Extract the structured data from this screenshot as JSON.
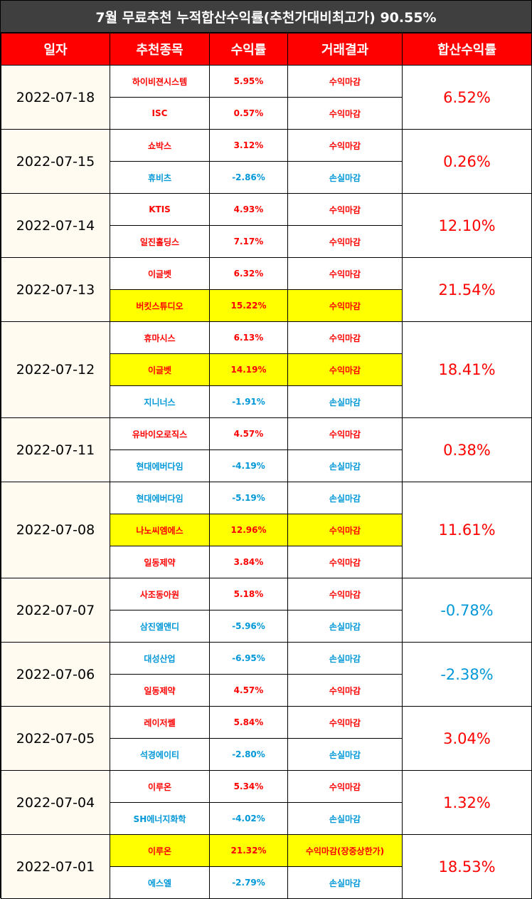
{
  "title": "7월 무료추천 누적합산수익률(추천가대비최고가) 90.55%",
  "headers": [
    "일자",
    "추천종목",
    "수익률",
    "거래결과",
    "합산수익률"
  ],
  "colors": {
    "profit": "#ff0000",
    "loss": "#0098d8",
    "highlight": "#ffff00",
    "header_bg": "#ff0000",
    "title_bg": "#3f3f3f"
  },
  "groups": [
    {
      "date": "2022-07-18",
      "total": "6.52%",
      "total_positive": true,
      "rows": [
        {
          "name": "하이비젼시스템",
          "rate": "5.95%",
          "result": "수익마감",
          "positive": true,
          "highlight": false
        },
        {
          "name": "ISC",
          "rate": "0.57%",
          "result": "수익마감",
          "positive": true,
          "highlight": false
        }
      ]
    },
    {
      "date": "2022-07-15",
      "total": "0.26%",
      "total_positive": true,
      "rows": [
        {
          "name": "쇼박스",
          "rate": "3.12%",
          "result": "수익마감",
          "positive": true,
          "highlight": false
        },
        {
          "name": "휴비츠",
          "rate": "-2.86%",
          "result": "손실마감",
          "positive": false,
          "highlight": false
        }
      ]
    },
    {
      "date": "2022-07-14",
      "total": "12.10%",
      "total_positive": true,
      "rows": [
        {
          "name": "KTIS",
          "rate": "4.93%",
          "result": "수익마감",
          "positive": true,
          "highlight": false
        },
        {
          "name": "일진홀딩스",
          "rate": "7.17%",
          "result": "수익마감",
          "positive": true,
          "highlight": false
        }
      ]
    },
    {
      "date": "2022-07-13",
      "total": "21.54%",
      "total_positive": true,
      "rows": [
        {
          "name": "이글벳",
          "rate": "6.32%",
          "result": "수익마감",
          "positive": true,
          "highlight": false
        },
        {
          "name": "버킷스튜디오",
          "rate": "15.22%",
          "result": "수익마감",
          "positive": true,
          "highlight": true
        }
      ]
    },
    {
      "date": "2022-07-12",
      "total": "18.41%",
      "total_positive": true,
      "rows": [
        {
          "name": "휴마시스",
          "rate": "6.13%",
          "result": "수익마감",
          "positive": true,
          "highlight": false
        },
        {
          "name": "이글벳",
          "rate": "14.19%",
          "result": "수익마감",
          "positive": true,
          "highlight": true
        },
        {
          "name": "지니너스",
          "rate": "-1.91%",
          "result": "손실마감",
          "positive": false,
          "highlight": false
        }
      ]
    },
    {
      "date": "2022-07-11",
      "total": "0.38%",
      "total_positive": true,
      "rows": [
        {
          "name": "유바이오로직스",
          "rate": "4.57%",
          "result": "수익마감",
          "positive": true,
          "highlight": false
        },
        {
          "name": "현대에버다임",
          "rate": "-4.19%",
          "result": "손실마감",
          "positive": false,
          "highlight": false
        }
      ]
    },
    {
      "date": "2022-07-08",
      "total": "11.61%",
      "total_positive": true,
      "rows": [
        {
          "name": "현대에버다임",
          "rate": "-5.19%",
          "result": "손실마감",
          "positive": false,
          "highlight": false
        },
        {
          "name": "나노씨엠에스",
          "rate": "12.96%",
          "result": "수익마감",
          "positive": true,
          "highlight": true
        },
        {
          "name": "일동제약",
          "rate": "3.84%",
          "result": "수익마감",
          "positive": true,
          "highlight": false
        }
      ]
    },
    {
      "date": "2022-07-07",
      "total": "-0.78%",
      "total_positive": false,
      "rows": [
        {
          "name": "사조동아원",
          "rate": "5.18%",
          "result": "수익마감",
          "positive": true,
          "highlight": false
        },
        {
          "name": "삼진엘앤디",
          "rate": "-5.96%",
          "result": "손실마감",
          "positive": false,
          "highlight": false
        }
      ]
    },
    {
      "date": "2022-07-06",
      "total": "-2.38%",
      "total_positive": false,
      "rows": [
        {
          "name": "대성산업",
          "rate": "-6.95%",
          "result": "손실마감",
          "positive": false,
          "highlight": false
        },
        {
          "name": "일동제약",
          "rate": "4.57%",
          "result": "수익마감",
          "positive": true,
          "highlight": false
        }
      ]
    },
    {
      "date": "2022-07-05",
      "total": "3.04%",
      "total_positive": true,
      "rows": [
        {
          "name": "레이저쎌",
          "rate": "5.84%",
          "result": "수익마감",
          "positive": true,
          "highlight": false
        },
        {
          "name": "석경에이티",
          "rate": "-2.80%",
          "result": "손실마감",
          "positive": false,
          "highlight": false
        }
      ]
    },
    {
      "date": "2022-07-04",
      "total": "1.32%",
      "total_positive": true,
      "rows": [
        {
          "name": "이루온",
          "rate": "5.34%",
          "result": "수익마감",
          "positive": true,
          "highlight": false
        },
        {
          "name": "SH에너지화학",
          "rate": "-4.02%",
          "result": "손실마감",
          "positive": false,
          "highlight": false
        }
      ]
    },
    {
      "date": "2022-07-01",
      "total": "18.53%",
      "total_positive": true,
      "rows": [
        {
          "name": "이루온",
          "rate": "21.32%",
          "result": "수익마감(장중상한가)",
          "positive": true,
          "highlight": true
        },
        {
          "name": "에스엘",
          "rate": "-2.79%",
          "result": "손실마감",
          "positive": false,
          "highlight": false
        }
      ]
    }
  ]
}
